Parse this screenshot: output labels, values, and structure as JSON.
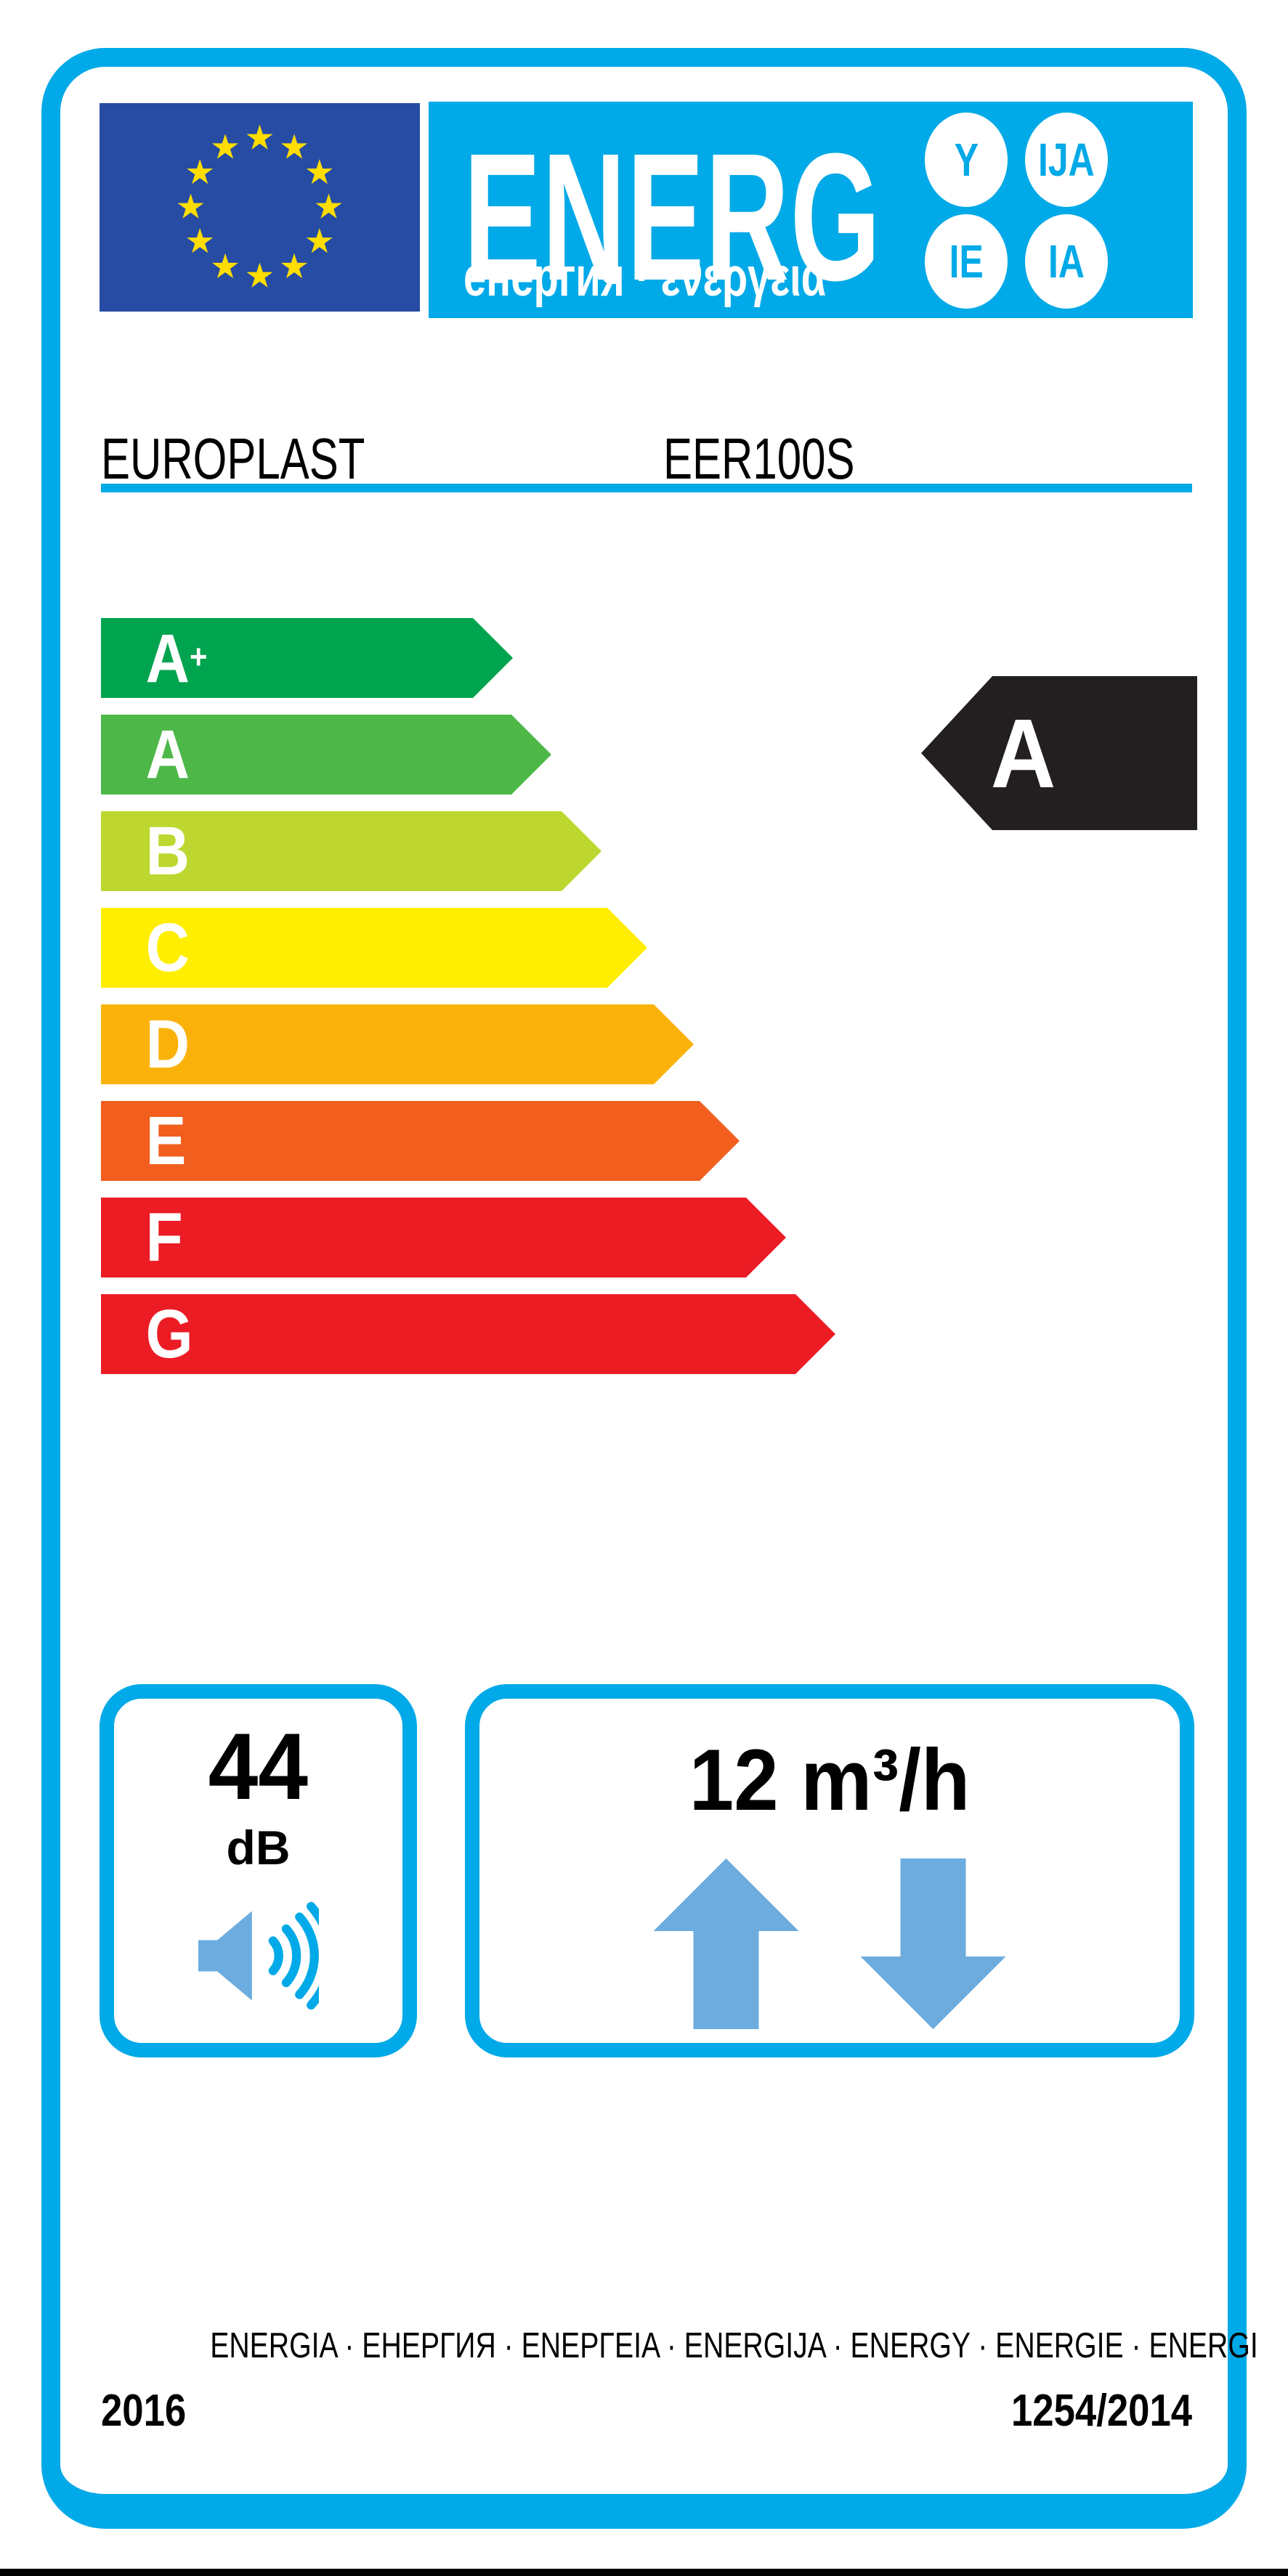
{
  "header": {
    "logo_text": "ENERG",
    "logo_subtext": "енергия · ενεργεια",
    "suffix_bubbles": [
      "Y",
      "IJA",
      "IE",
      "IA"
    ],
    "eu_flag_star_count": 12
  },
  "product": {
    "brand": "EUROPLAST",
    "model": "EER100S"
  },
  "rating": {
    "classes": [
      {
        "label": "A+",
        "color": "#00A44F"
      },
      {
        "label": "A",
        "color": "#4DB848"
      },
      {
        "label": "B",
        "color": "#BED730"
      },
      {
        "label": "C",
        "color": "#FFEE00"
      },
      {
        "label": "D",
        "color": "#FAB20B"
      },
      {
        "label": "E",
        "color": "#F15E1D"
      },
      {
        "label": "F",
        "color": "#EC1C24"
      },
      {
        "label": "G",
        "color": "#EC1C24"
      }
    ],
    "selected_label": "A",
    "selected_color": "#231F20"
  },
  "noise": {
    "value": "44",
    "unit": "dB"
  },
  "airflow": {
    "value": "12 m³/h"
  },
  "footer": {
    "energy_words": "ENERGIA · ЕНЕРГИЯ · ΕΝΕΡΓΕΙΑ · ENERGIJA · ENERGY · ENERGIE · ENERGI",
    "year": "2016",
    "regulation": "1254/2014"
  },
  "colors": {
    "blue": "#00A9E7",
    "light_blue": "#6CACDE",
    "flag_blue": "#264CA4",
    "star_yellow": "#FFDD00",
    "arrow_black": "#231F20"
  }
}
